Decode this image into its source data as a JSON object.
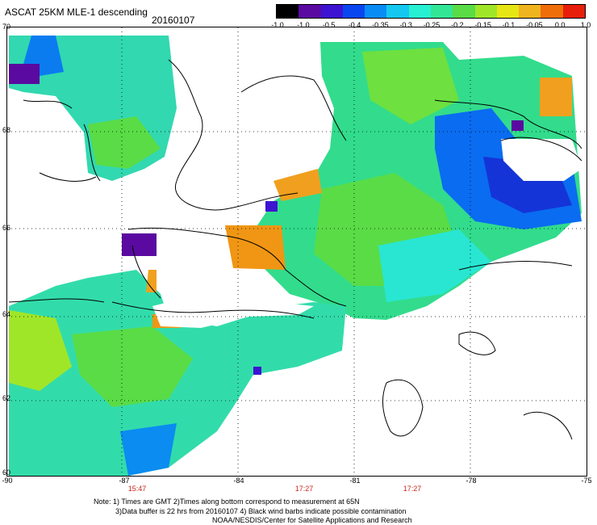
{
  "header": {
    "title": "ASCAT 25KM MLE-1 descending",
    "date": "20160107"
  },
  "colorbar": {
    "labels": [
      "-1.0",
      "-1.0",
      "-0.5",
      "-0.4",
      "-0.35",
      "-0.3",
      "-0.25",
      "-0.2",
      "-0.15",
      "-0.1",
      "-0.05",
      "0.0",
      "1.0"
    ],
    "colors": [
      "#000000",
      "#5a0aa0",
      "#3c14d2",
      "#0a46f0",
      "#0a8cf5",
      "#14c8f0",
      "#28f0d2",
      "#32e696",
      "#5adc46",
      "#a0e628",
      "#e6e614",
      "#f0b41e",
      "#f06e0a",
      "#e61e0a"
    ]
  },
  "axes": {
    "y_ticks": [
      "70",
      "68",
      "66",
      "64",
      "62",
      "60"
    ],
    "x_ticks": [
      "-90",
      "-87",
      "-84",
      "-81",
      "-78",
      "-75"
    ],
    "lat_range": [
      60,
      70
    ],
    "lon_range": [
      -90,
      -75
    ]
  },
  "pass_times": [
    "15:47",
    "17:27",
    "17:27"
  ],
  "notes": {
    "line1": "Note: 1) Times are GMT 2)Times along bottom correspond to measurement at 65N",
    "line2": "3)Data buffer is 22 hrs from 20160107 4) Black wind barbs indicate possible contamination",
    "line3": "NOAA/NESDIS/Center for Satellite Applications and Research"
  }
}
